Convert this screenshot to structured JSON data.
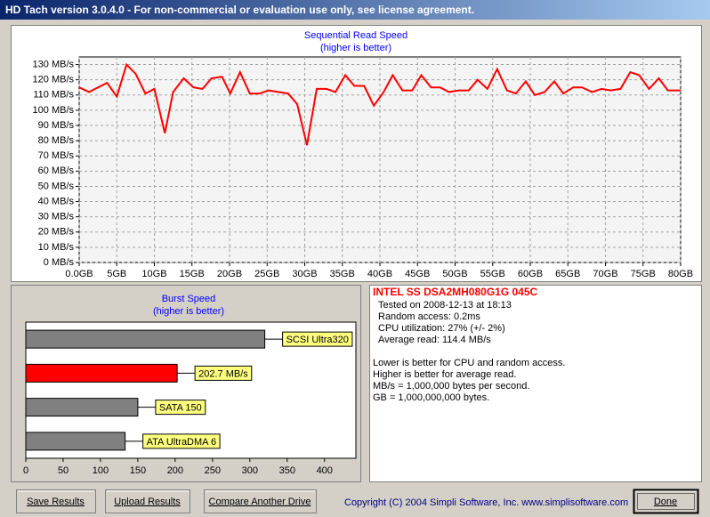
{
  "window": {
    "title": "HD Tach version 3.0.4.0  - For non-commercial or evaluation use only, see license agreement."
  },
  "chart_data": [
    {
      "type": "line",
      "title": "Sequential Read Speed",
      "subtitle": "(higher is better)",
      "color": "#ff0000",
      "grid": true,
      "xlim": [
        0,
        80
      ],
      "ylim": [
        0,
        135
      ],
      "xticks": [
        {
          "value": 0,
          "label": "0.0GB"
        },
        {
          "value": 5,
          "label": "5GB"
        },
        {
          "value": 10,
          "label": "10GB"
        },
        {
          "value": 15,
          "label": "15GB"
        },
        {
          "value": 20,
          "label": "20GB"
        },
        {
          "value": 25,
          "label": "25GB"
        },
        {
          "value": 30,
          "label": "30GB"
        },
        {
          "value": 35,
          "label": "35GB"
        },
        {
          "value": 40,
          "label": "40GB"
        },
        {
          "value": 45,
          "label": "45GB"
        },
        {
          "value": 50,
          "label": "50GB"
        },
        {
          "value": 55,
          "label": "55GB"
        },
        {
          "value": 60,
          "label": "60GB"
        },
        {
          "value": 65,
          "label": "65GB"
        },
        {
          "value": 70,
          "label": "70GB"
        },
        {
          "value": 75,
          "label": "75GB"
        },
        {
          "value": 80,
          "label": "80GB"
        }
      ],
      "yticks": [
        {
          "value": 0,
          "label": "0 MB/s"
        },
        {
          "value": 10,
          "label": "10 MB/s"
        },
        {
          "value": 20,
          "label": "20 MB/s"
        },
        {
          "value": 30,
          "label": "30 MB/s"
        },
        {
          "value": 40,
          "label": "40 MB/s"
        },
        {
          "value": 50,
          "label": "50 MB/s"
        },
        {
          "value": 60,
          "label": "60 MB/s"
        },
        {
          "value": 70,
          "label": "70 MB/s"
        },
        {
          "value": 80,
          "label": "80 MB/s"
        },
        {
          "value": 90,
          "label": "90 MB/s"
        },
        {
          "value": 100,
          "label": "100 MB/s"
        },
        {
          "value": 110,
          "label": "110 MB/s"
        },
        {
          "value": 120,
          "label": "120 MB/s"
        },
        {
          "value": 130,
          "label": "130 MB/s"
        }
      ],
      "x": [
        0,
        1.3,
        3.7,
        5,
        6.3,
        7.5,
        8.8,
        10,
        11.4,
        12.5,
        13.9,
        15.2,
        16.4,
        17.6,
        19,
        20.1,
        21.4,
        22.7,
        24,
        25.2,
        26.5,
        27.8,
        29,
        30.3,
        31.6,
        32.9,
        34.1,
        35.4,
        36.6,
        37.9,
        39.2,
        40.5,
        41.7,
        43,
        44.3,
        45.5,
        46.8,
        48,
        49.2,
        50.5,
        51.8,
        53,
        54.3,
        55.6,
        56.9,
        58.1,
        59.4,
        60.6,
        61.9,
        63.2,
        64.4,
        65.7,
        66.9,
        68.2,
        69.5,
        70.7,
        72,
        73.3,
        74.5,
        75.8,
        77.1,
        78.3,
        80
      ],
      "values": [
        115,
        112,
        118,
        109,
        130,
        124,
        111,
        114,
        85,
        112,
        121,
        115,
        114,
        121,
        122,
        111,
        125,
        111,
        111,
        113,
        112,
        111,
        104,
        77,
        114,
        114,
        112,
        123,
        116,
        116,
        103,
        112,
        123,
        113,
        113,
        123,
        115,
        115,
        112,
        113,
        113,
        120,
        114,
        127,
        113,
        111,
        119,
        110,
        112,
        119,
        111,
        115,
        115,
        112,
        114,
        113,
        114,
        125,
        123,
        114,
        121,
        113,
        113
      ]
    },
    {
      "type": "bar",
      "orientation": "horizontal",
      "title": "Burst Speed",
      "subtitle": "(higher is better)",
      "xlim": [
        0,
        442
      ],
      "xticks": [
        0,
        50,
        100,
        150,
        200,
        250,
        300,
        350,
        400
      ],
      "categories": [
        "SCSI Ultra320",
        null,
        "SATA 150",
        "ATA UltraDMA 6"
      ],
      "values": [
        320,
        202.7,
        150,
        133
      ],
      "value_labels": [
        null,
        "202.7 MB/s",
        null,
        null
      ],
      "colors": [
        "#808080",
        "#ff0000",
        "#808080",
        "#808080"
      ]
    }
  ],
  "info": {
    "heading": "INTEL SS DSA2MH080G1G 045C",
    "lines": [
      "Tested on 2008-12-13 at 18:13",
      "Random access: 0.2ms",
      "CPU utilization: 27% (+/- 2%)",
      "Average read: 114.4 MB/s"
    ],
    "notes": [
      "Lower is better for CPU and random access.",
      "Higher is better for average read.",
      "MB/s = 1,000,000 bytes per second.",
      "GB = 1,000,000,000 bytes."
    ]
  },
  "buttons": [
    "Save Results",
    "Upload Results",
    "Compare Another Drive",
    "Done"
  ],
  "copyright": "Copyright (C) 2004 Simpli Software, Inc. www.simplisoftware.com"
}
